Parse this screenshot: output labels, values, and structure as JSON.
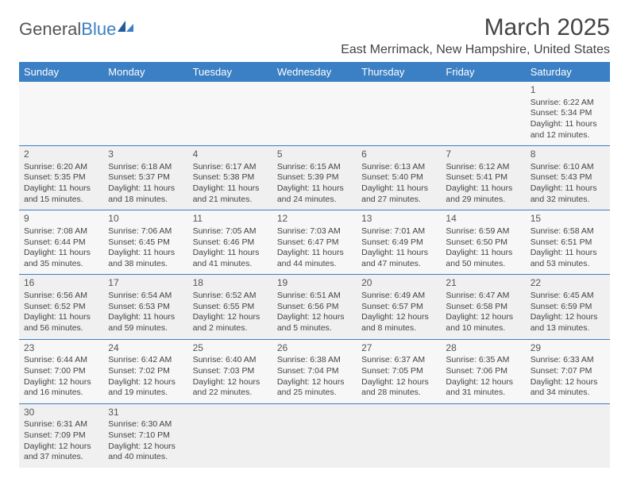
{
  "logo": {
    "brand_a": "General",
    "brand_b": "Blue"
  },
  "title": "March 2025",
  "location": "East Merrimack, New Hampshire, United States",
  "colors": {
    "header_bg": "#3b7fc4",
    "header_text": "#ffffff",
    "row_border": "#3b7fc4",
    "cell_bg_a": "#f7f7f7",
    "cell_bg_b": "#f0f0f0",
    "text": "#444444"
  },
  "day_headers": [
    "Sunday",
    "Monday",
    "Tuesday",
    "Wednesday",
    "Thursday",
    "Friday",
    "Saturday"
  ],
  "weeks": [
    [
      null,
      null,
      null,
      null,
      null,
      null,
      {
        "n": "1",
        "sr": "6:22 AM",
        "ss": "5:34 PM",
        "dl": "11 hours and 12 minutes."
      }
    ],
    [
      {
        "n": "2",
        "sr": "6:20 AM",
        "ss": "5:35 PM",
        "dl": "11 hours and 15 minutes."
      },
      {
        "n": "3",
        "sr": "6:18 AM",
        "ss": "5:37 PM",
        "dl": "11 hours and 18 minutes."
      },
      {
        "n": "4",
        "sr": "6:17 AM",
        "ss": "5:38 PM",
        "dl": "11 hours and 21 minutes."
      },
      {
        "n": "5",
        "sr": "6:15 AM",
        "ss": "5:39 PM",
        "dl": "11 hours and 24 minutes."
      },
      {
        "n": "6",
        "sr": "6:13 AM",
        "ss": "5:40 PM",
        "dl": "11 hours and 27 minutes."
      },
      {
        "n": "7",
        "sr": "6:12 AM",
        "ss": "5:41 PM",
        "dl": "11 hours and 29 minutes."
      },
      {
        "n": "8",
        "sr": "6:10 AM",
        "ss": "5:43 PM",
        "dl": "11 hours and 32 minutes."
      }
    ],
    [
      {
        "n": "9",
        "sr": "7:08 AM",
        "ss": "6:44 PM",
        "dl": "11 hours and 35 minutes."
      },
      {
        "n": "10",
        "sr": "7:06 AM",
        "ss": "6:45 PM",
        "dl": "11 hours and 38 minutes."
      },
      {
        "n": "11",
        "sr": "7:05 AM",
        "ss": "6:46 PM",
        "dl": "11 hours and 41 minutes."
      },
      {
        "n": "12",
        "sr": "7:03 AM",
        "ss": "6:47 PM",
        "dl": "11 hours and 44 minutes."
      },
      {
        "n": "13",
        "sr": "7:01 AM",
        "ss": "6:49 PM",
        "dl": "11 hours and 47 minutes."
      },
      {
        "n": "14",
        "sr": "6:59 AM",
        "ss": "6:50 PM",
        "dl": "11 hours and 50 minutes."
      },
      {
        "n": "15",
        "sr": "6:58 AM",
        "ss": "6:51 PM",
        "dl": "11 hours and 53 minutes."
      }
    ],
    [
      {
        "n": "16",
        "sr": "6:56 AM",
        "ss": "6:52 PM",
        "dl": "11 hours and 56 minutes."
      },
      {
        "n": "17",
        "sr": "6:54 AM",
        "ss": "6:53 PM",
        "dl": "11 hours and 59 minutes."
      },
      {
        "n": "18",
        "sr": "6:52 AM",
        "ss": "6:55 PM",
        "dl": "12 hours and 2 minutes."
      },
      {
        "n": "19",
        "sr": "6:51 AM",
        "ss": "6:56 PM",
        "dl": "12 hours and 5 minutes."
      },
      {
        "n": "20",
        "sr": "6:49 AM",
        "ss": "6:57 PM",
        "dl": "12 hours and 8 minutes."
      },
      {
        "n": "21",
        "sr": "6:47 AM",
        "ss": "6:58 PM",
        "dl": "12 hours and 10 minutes."
      },
      {
        "n": "22",
        "sr": "6:45 AM",
        "ss": "6:59 PM",
        "dl": "12 hours and 13 minutes."
      }
    ],
    [
      {
        "n": "23",
        "sr": "6:44 AM",
        "ss": "7:00 PM",
        "dl": "12 hours and 16 minutes."
      },
      {
        "n": "24",
        "sr": "6:42 AM",
        "ss": "7:02 PM",
        "dl": "12 hours and 19 minutes."
      },
      {
        "n": "25",
        "sr": "6:40 AM",
        "ss": "7:03 PM",
        "dl": "12 hours and 22 minutes."
      },
      {
        "n": "26",
        "sr": "6:38 AM",
        "ss": "7:04 PM",
        "dl": "12 hours and 25 minutes."
      },
      {
        "n": "27",
        "sr": "6:37 AM",
        "ss": "7:05 PM",
        "dl": "12 hours and 28 minutes."
      },
      {
        "n": "28",
        "sr": "6:35 AM",
        "ss": "7:06 PM",
        "dl": "12 hours and 31 minutes."
      },
      {
        "n": "29",
        "sr": "6:33 AM",
        "ss": "7:07 PM",
        "dl": "12 hours and 34 minutes."
      }
    ],
    [
      {
        "n": "30",
        "sr": "6:31 AM",
        "ss": "7:09 PM",
        "dl": "12 hours and 37 minutes."
      },
      {
        "n": "31",
        "sr": "6:30 AM",
        "ss": "7:10 PM",
        "dl": "12 hours and 40 minutes."
      },
      null,
      null,
      null,
      null,
      null
    ]
  ],
  "labels": {
    "sunrise": "Sunrise:",
    "sunset": "Sunset:",
    "daylight": "Daylight:"
  }
}
